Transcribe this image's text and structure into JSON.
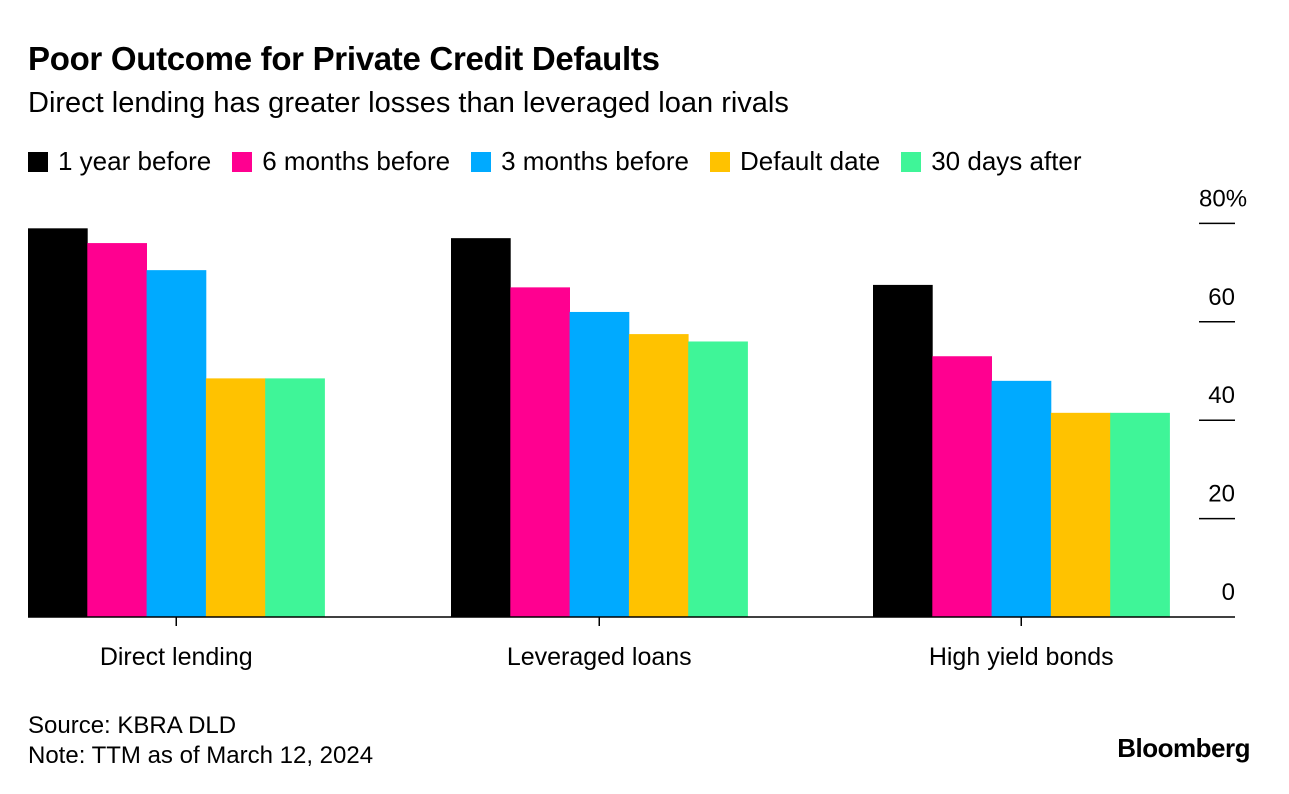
{
  "header": {
    "title": "Poor Outcome for Private Credit Defaults",
    "subtitle": "Direct lending has greater losses than leveraged loan rivals"
  },
  "chart_data": {
    "type": "bar",
    "categories": [
      "Direct lending",
      "Leveraged loans",
      "High yield bonds"
    ],
    "series": [
      {
        "name": "1 year before",
        "color": "#000000",
        "values": [
          79,
          77,
          67.5
        ]
      },
      {
        "name": "6 months before",
        "color": "#ff0090",
        "values": [
          76,
          67,
          53
        ]
      },
      {
        "name": "3 months before",
        "color": "#00aaff",
        "values": [
          70.5,
          62,
          48
        ]
      },
      {
        "name": "Default date",
        "color": "#ffc200",
        "values": [
          48.5,
          57.5,
          41.5
        ]
      },
      {
        "name": "30 days after",
        "color": "#3ff598",
        "values": [
          48.5,
          56,
          41.5
        ]
      }
    ],
    "y_ticks": [
      "0",
      "20",
      "40",
      "60",
      "80%"
    ],
    "ylim": [
      0,
      80
    ],
    "legend_position": "top",
    "grid": false
  },
  "footer": {
    "source": "Source: KBRA DLD",
    "note": "Note: TTM as of March 12, 2024",
    "brand": "Bloomberg"
  }
}
